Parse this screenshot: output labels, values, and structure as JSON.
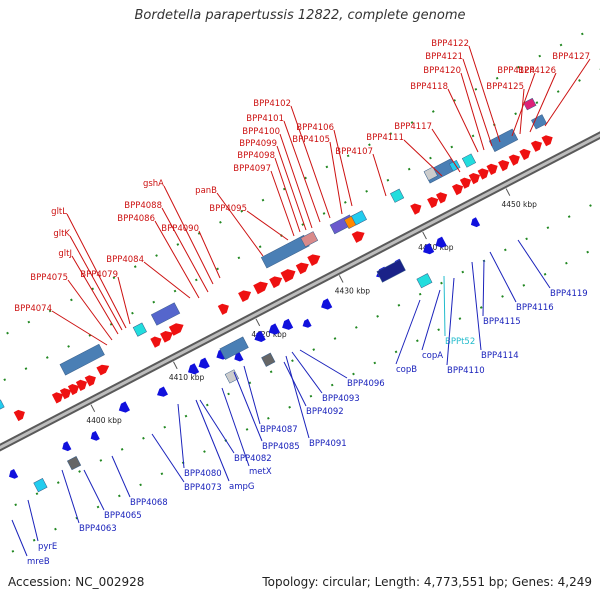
{
  "title": "Bordetella parapertussis 12822, complete genome",
  "accession": "Accession: NC_002928",
  "summary": "Topology: circular; Length: 4,773,551 bp; Genes: 4,249",
  "colors": {
    "forward_label": "#cc1111",
    "reverse_label": "#1a22bb",
    "rna_label": "#22bbcc",
    "forward_arrow": "#ee1111",
    "reverse_arrow": "#1111dd",
    "backbone": "#888888",
    "guide_dots": "#228822"
  },
  "ticks": [
    "4400 kbp",
    "4410 kbp",
    "4420 kbp",
    "4430 kbp",
    "4440 kbp",
    "4450 kbp"
  ],
  "top_labels": [
    "BPP4074",
    "BPP4075",
    "gltJ",
    "gltK",
    "gltL",
    "BPP4079",
    "BPP4084",
    "BPP4086",
    "BPP4088",
    "gshA",
    "BPP4090",
    "panB",
    "BPP4095",
    "BPP4097",
    "BPP4098",
    "BPP4099",
    "BPP4100",
    "BPP4101",
    "BPP4102",
    "BPP4105",
    "BPP4106",
    "BPP4107",
    "BPP4111",
    "BPP4117",
    "BPP4118",
    "BPP4120",
    "BPP4121",
    "BPP4122",
    "BPP4124",
    "BPP4125",
    "BPP4126",
    "BPP4127"
  ],
  "bottom_labels": [
    "mreB",
    "pyrE",
    "BPP4063",
    "BPP4065",
    "BPP4068",
    "BPP4073",
    "BPP4080",
    "ampG",
    "BPP4082",
    "metX",
    "BPP4085",
    "BPP4087",
    "BPP4091",
    "BPP4092",
    "BPP4093",
    "BPP4096",
    "copB",
    "copA",
    "BPPt52",
    "BPP4110",
    "BPP4114",
    "BPP4115",
    "BPP4116",
    "BPP4119"
  ]
}
